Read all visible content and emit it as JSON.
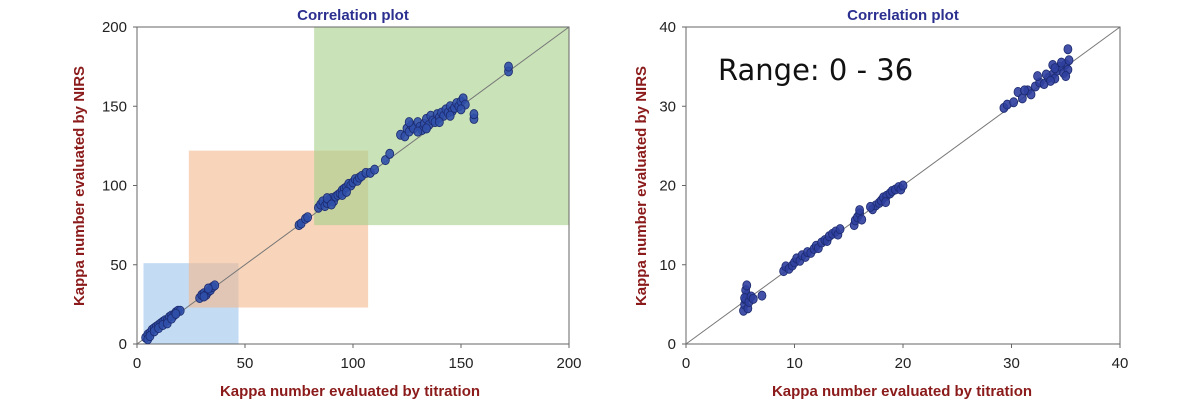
{
  "chart_data": [
    {
      "type": "scatter",
      "title": "Correlation plot",
      "xlabel": "Kappa number evaluated by titration",
      "ylabel": "Kappa number evaluated by NIRS",
      "xlim": [
        0,
        200
      ],
      "ylim": [
        0,
        200
      ],
      "xticks": [
        "0",
        "50",
        "100",
        "150",
        "200"
      ],
      "yticks": [
        "0",
        "50",
        "100",
        "150",
        "200"
      ],
      "diagonal_line": true,
      "grid": false,
      "point_color": "#2f4fa8",
      "regions": [
        {
          "x": [
            3,
            47
          ],
          "y": [
            0,
            51
          ],
          "color": "#9ec5ec"
        },
        {
          "x": [
            24,
            107
          ],
          "y": [
            23,
            122
          ],
          "color": "#f4b98f"
        },
        {
          "x": [
            82,
            200
          ],
          "y": [
            75,
            200
          ],
          "color": "#a8d08d"
        }
      ],
      "points": [
        [
          4,
          4
        ],
        [
          5,
          6
        ],
        [
          6,
          7
        ],
        [
          7,
          9
        ],
        [
          8,
          10
        ],
        [
          9,
          11
        ],
        [
          10,
          12
        ],
        [
          11,
          13
        ],
        [
          12,
          14
        ],
        [
          13,
          15
        ],
        [
          14,
          15
        ],
        [
          15,
          17
        ],
        [
          16,
          18
        ],
        [
          17,
          18
        ],
        [
          18,
          20
        ],
        [
          19,
          21
        ],
        [
          20,
          21
        ],
        [
          5,
          3
        ],
        [
          6,
          5
        ],
        [
          8,
          8
        ],
        [
          10,
          10
        ],
        [
          12,
          12
        ],
        [
          14,
          13
        ],
        [
          16,
          16
        ],
        [
          18,
          19
        ],
        [
          29,
          29
        ],
        [
          30,
          31
        ],
        [
          31,
          32
        ],
        [
          32,
          31
        ],
        [
          33,
          33
        ],
        [
          34,
          34
        ],
        [
          35,
          36
        ],
        [
          36,
          37
        ],
        [
          31,
          30
        ],
        [
          33,
          35
        ],
        [
          75,
          75
        ],
        [
          76,
          76
        ],
        [
          78,
          79
        ],
        [
          79,
          80
        ],
        [
          84,
          86
        ],
        [
          85,
          88
        ],
        [
          86,
          90
        ],
        [
          87,
          87
        ],
        [
          88,
          89
        ],
        [
          89,
          91
        ],
        [
          90,
          92
        ],
        [
          91,
          90
        ],
        [
          92,
          93
        ],
        [
          93,
          94
        ],
        [
          94,
          95
        ],
        [
          95,
          97
        ],
        [
          96,
          98
        ],
        [
          97,
          99
        ],
        [
          98,
          101
        ],
        [
          99,
          100
        ],
        [
          100,
          102
        ],
        [
          101,
          104
        ],
        [
          102,
          103
        ],
        [
          103,
          105
        ],
        [
          104,
          106
        ],
        [
          95,
          94
        ],
        [
          97,
          96
        ],
        [
          88,
          92
        ],
        [
          90,
          88
        ],
        [
          106,
          108
        ],
        [
          108,
          108
        ],
        [
          110,
          110
        ],
        [
          115,
          116
        ],
        [
          117,
          120
        ],
        [
          122,
          132
        ],
        [
          124,
          131
        ],
        [
          125,
          136
        ],
        [
          126,
          134
        ],
        [
          127,
          138
        ],
        [
          128,
          136
        ],
        [
          130,
          140
        ],
        [
          131,
          137
        ],
        [
          132,
          135
        ],
        [
          133,
          139
        ],
        [
          134,
          142
        ],
        [
          135,
          138
        ],
        [
          136,
          144
        ],
        [
          137,
          141
        ],
        [
          138,
          140
        ],
        [
          139,
          145
        ],
        [
          140,
          143
        ],
        [
          141,
          146
        ],
        [
          142,
          144
        ],
        [
          143,
          148
        ],
        [
          144,
          146
        ],
        [
          145,
          150
        ],
        [
          146,
          147
        ],
        [
          147,
          149
        ],
        [
          148,
          152
        ],
        [
          149,
          150
        ],
        [
          150,
          153
        ],
        [
          151,
          155
        ],
        [
          152,
          151
        ],
        [
          126,
          140
        ],
        [
          130,
          134
        ],
        [
          134,
          136
        ],
        [
          140,
          140
        ],
        [
          145,
          144
        ],
        [
          150,
          148
        ],
        [
          156,
          142
        ],
        [
          156,
          145
        ],
        [
          172,
          172
        ],
        [
          172,
          175
        ]
      ]
    },
    {
      "type": "scatter",
      "title": "Correlation plot",
      "xlabel": "Kappa number evaluated by titration",
      "ylabel": "Kappa number evaluated by NIRS",
      "xlim": [
        0,
        40
      ],
      "ylim": [
        0,
        40
      ],
      "xticks": [
        "0",
        "10",
        "20",
        "30",
        "40"
      ],
      "yticks": [
        "0",
        "10",
        "20",
        "30",
        "40"
      ],
      "diagonal_line": true,
      "grid": false,
      "point_color": "#2f3f9e",
      "annotation": "Range: 0 - 36",
      "points": [
        [
          5.3,
          4.2
        ],
        [
          5.4,
          5.0
        ],
        [
          5.5,
          5.6
        ],
        [
          5.6,
          6.2
        ],
        [
          5.5,
          6.8
        ],
        [
          5.6,
          7.4
        ],
        [
          5.4,
          5.8
        ],
        [
          5.7,
          4.5
        ],
        [
          5.8,
          5.3
        ],
        [
          6.0,
          6.0
        ],
        [
          6.2,
          5.7
        ],
        [
          7.0,
          6.1
        ],
        [
          9.0,
          9.2
        ],
        [
          9.2,
          9.8
        ],
        [
          9.5,
          9.5
        ],
        [
          9.8,
          9.9
        ],
        [
          10.0,
          10.3
        ],
        [
          10.2,
          10.8
        ],
        [
          10.5,
          10.5
        ],
        [
          10.7,
          11.2
        ],
        [
          11.0,
          11.0
        ],
        [
          11.2,
          11.6
        ],
        [
          11.5,
          11.5
        ],
        [
          11.8,
          12.0
        ],
        [
          12.0,
          12.4
        ],
        [
          12.2,
          12.1
        ],
        [
          12.5,
          12.8
        ],
        [
          12.8,
          13.1
        ],
        [
          13.0,
          13.0
        ],
        [
          13.2,
          13.6
        ],
        [
          13.5,
          13.9
        ],
        [
          13.8,
          14.2
        ],
        [
          14.0,
          13.8
        ],
        [
          14.2,
          14.5
        ],
        [
          15.5,
          15.0
        ],
        [
          15.6,
          15.6
        ],
        [
          15.8,
          16.0
        ],
        [
          16.0,
          16.5
        ],
        [
          16.2,
          15.7
        ],
        [
          16.0,
          16.9
        ],
        [
          17.2,
          17.0
        ],
        [
          17.5,
          17.5
        ],
        [
          17.8,
          17.8
        ],
        [
          18.0,
          18.1
        ],
        [
          18.2,
          18.5
        ],
        [
          18.5,
          18.7
        ],
        [
          18.8,
          19.0
        ],
        [
          19.0,
          19.3
        ],
        [
          19.3,
          19.5
        ],
        [
          19.6,
          19.8
        ],
        [
          19.8,
          19.5
        ],
        [
          20.0,
          20.0
        ],
        [
          18.4,
          17.9
        ],
        [
          17.0,
          17.3
        ],
        [
          29.3,
          29.8
        ],
        [
          29.6,
          30.2
        ],
        [
          30.2,
          30.5
        ],
        [
          30.6,
          31.8
        ],
        [
          31.0,
          31.0
        ],
        [
          31.5,
          32.0
        ],
        [
          31.8,
          31.5
        ],
        [
          32.2,
          32.5
        ],
        [
          32.6,
          33.0
        ],
        [
          33.0,
          32.8
        ],
        [
          33.4,
          33.6
        ],
        [
          33.8,
          34.0
        ],
        [
          34.0,
          33.5
        ],
        [
          34.2,
          34.5
        ],
        [
          34.5,
          35.0
        ],
        [
          34.8,
          34.2
        ],
        [
          35.0,
          35.3
        ],
        [
          35.2,
          34.6
        ],
        [
          35.3,
          35.8
        ],
        [
          35.2,
          37.2
        ],
        [
          34.6,
          35.5
        ],
        [
          33.8,
          35.2
        ],
        [
          33.2,
          34.0
        ],
        [
          32.4,
          33.8
        ],
        [
          31.2,
          32.0
        ],
        [
          34.0,
          34.8
        ],
        [
          35.0,
          33.8
        ],
        [
          33.6,
          33.2
        ]
      ]
    }
  ]
}
